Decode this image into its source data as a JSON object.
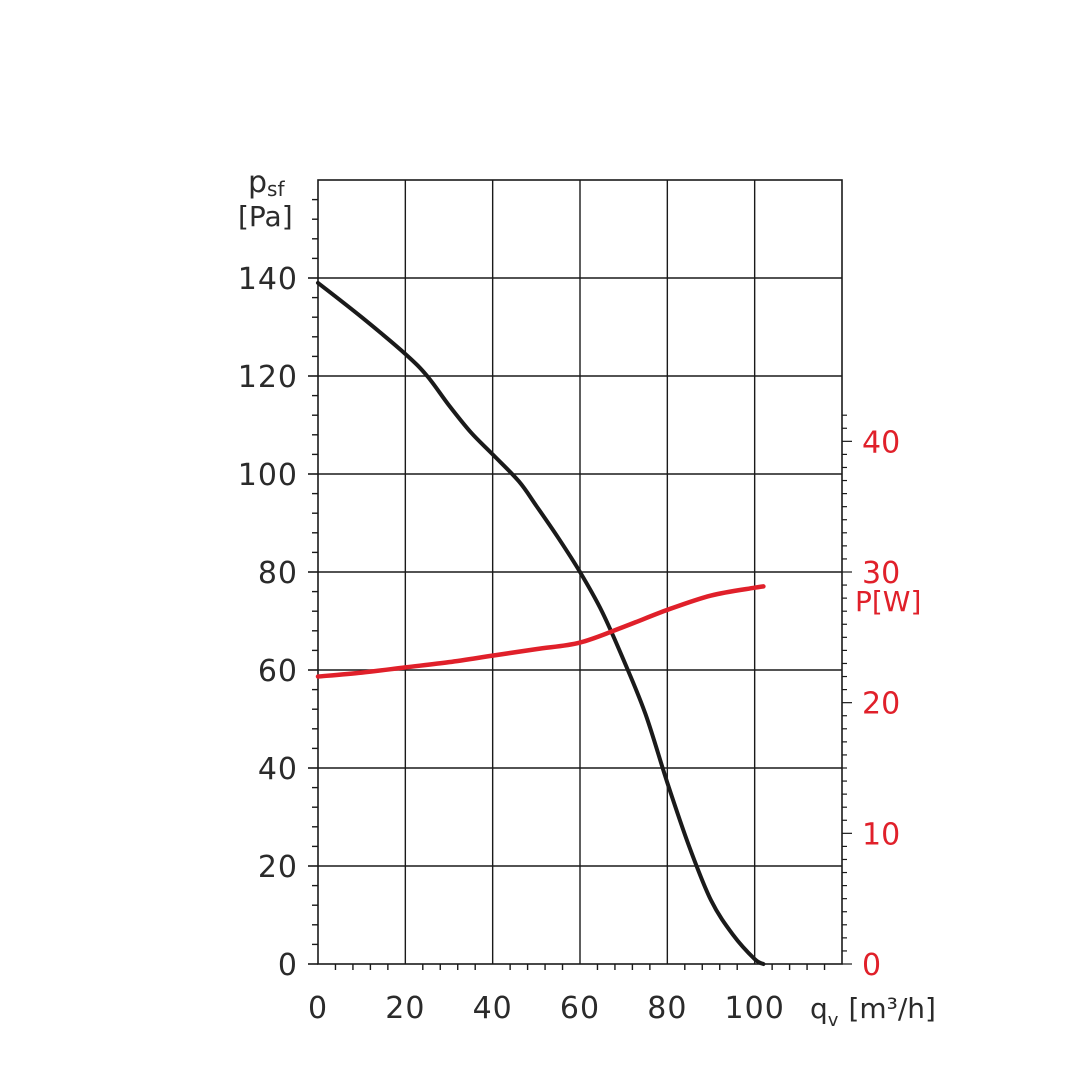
{
  "chart_data": {
    "type": "line",
    "colors": {
      "pressure": "#1a1a1a",
      "power": "#e0202a",
      "grid": "#1a1a1a"
    },
    "grid": true,
    "xlim": [
      0,
      120
    ],
    "ylim": [
      0,
      160
    ],
    "y2lim": [
      0,
      60
    ],
    "x_ticks": [
      0,
      20,
      40,
      60,
      80,
      100
    ],
    "y_ticks": [
      0,
      20,
      40,
      60,
      80,
      100,
      120,
      140
    ],
    "y2_ticks": [
      0,
      10,
      20,
      30,
      40
    ],
    "xlabel": {
      "main": "q",
      "sub": "v",
      "unit": "[m³/h]"
    },
    "ylabel": {
      "main": "p",
      "sub": "sf",
      "unit": "[Pa]"
    },
    "y2label": "P[W]",
    "series": [
      {
        "key": "pressure",
        "axis": "left",
        "points": [
          [
            0,
            139
          ],
          [
            10,
            132
          ],
          [
            20,
            124.5
          ],
          [
            25,
            120
          ],
          [
            30,
            114
          ],
          [
            35,
            108.5
          ],
          [
            40,
            104
          ],
          [
            46,
            98.5
          ],
          [
            50,
            93.5
          ],
          [
            55,
            87
          ],
          [
            60,
            80
          ],
          [
            65,
            72
          ],
          [
            70,
            62
          ],
          [
            75,
            51
          ],
          [
            80,
            37
          ],
          [
            85,
            24
          ],
          [
            90,
            13
          ],
          [
            95,
            6
          ],
          [
            100,
            1
          ],
          [
            102,
            0
          ]
        ]
      },
      {
        "key": "power",
        "axis": "right",
        "points": [
          [
            0,
            22
          ],
          [
            10,
            22.3
          ],
          [
            20,
            22.7
          ],
          [
            30,
            23.1
          ],
          [
            40,
            23.6
          ],
          [
            50,
            24.1
          ],
          [
            60,
            24.6
          ],
          [
            70,
            25.8
          ],
          [
            80,
            27.1
          ],
          [
            90,
            28.2
          ],
          [
            100,
            28.8
          ],
          [
            102,
            28.9
          ]
        ]
      }
    ]
  }
}
